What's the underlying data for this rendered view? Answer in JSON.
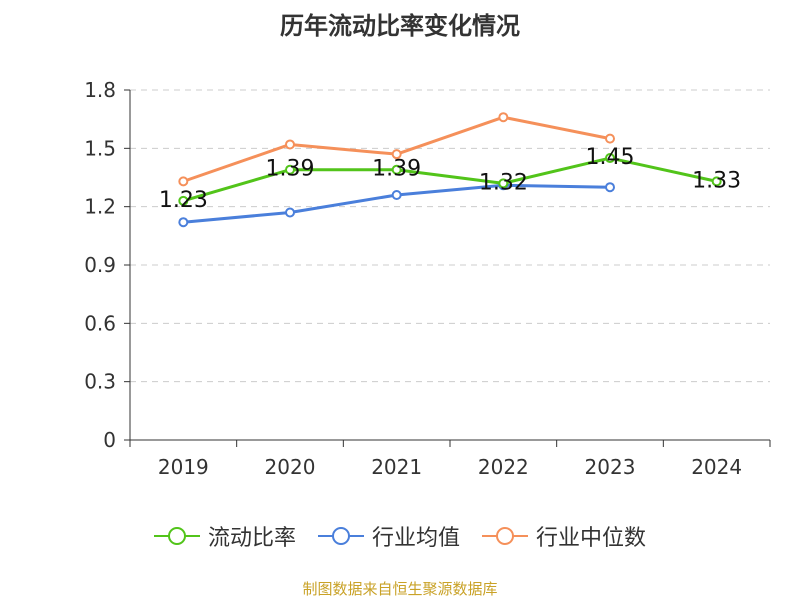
{
  "chart_data": {
    "type": "line",
    "title": "历年流动比率变化情况",
    "categories": [
      "2019",
      "2020",
      "2021",
      "2022",
      "2023",
      "2024"
    ],
    "y_ticks": [
      "0",
      "0.3",
      "0.6",
      "0.9",
      "1.2",
      "1.5",
      "1.8"
    ],
    "ylim": [
      0,
      1.8
    ],
    "grid": true,
    "legend_position": "bottom",
    "series": [
      {
        "name": "流动比率",
        "color": "#52c41a",
        "values": [
          1.23,
          1.39,
          1.39,
          1.32,
          1.45,
          1.33
        ],
        "labels": [
          "1.23",
          "1.39",
          "1.39",
          "1.32",
          "1.45",
          "1.33"
        ]
      },
      {
        "name": "行业均值",
        "color": "#4a7fdb",
        "values": [
          1.12,
          1.17,
          1.26,
          1.31,
          1.3,
          null
        ]
      },
      {
        "name": "行业中位数",
        "color": "#f5905a",
        "values": [
          1.33,
          1.52,
          1.47,
          1.66,
          1.55,
          null
        ]
      }
    ]
  },
  "source": "制图数据来自恒生聚源数据库"
}
